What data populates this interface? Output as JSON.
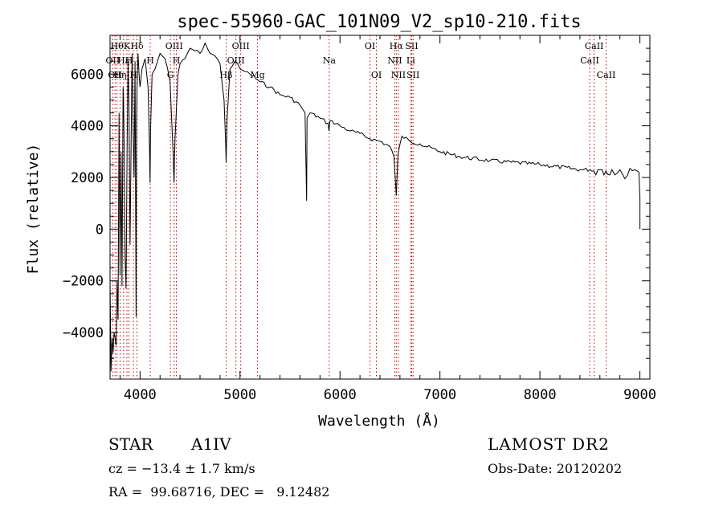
{
  "chart_data": {
    "type": "line",
    "title": "spec-55960-GAC_101N09_V2_sp10-210.fits",
    "xlabel": "Wavelength (Å)",
    "ylabel": "Flux (relative)",
    "xlim": [
      3700,
      9100
    ],
    "ylim": [
      -5800,
      7500
    ],
    "x_ticks": [
      4000,
      5000,
      6000,
      7000,
      8000,
      9000
    ],
    "y_ticks": [
      -4000,
      -2000,
      0,
      2000,
      4000,
      6000
    ],
    "grid": false,
    "line_color": "#000000",
    "line_marker_color": "#c00000",
    "series": [
      {
        "x": [
          3700,
          3710,
          3720,
          3730,
          3740,
          3750,
          3760,
          3770,
          3780,
          3790,
          3800,
          3810,
          3820,
          3830,
          3835,
          3840,
          3850,
          3860,
          3870,
          3880,
          3890,
          3900,
          3910,
          3920,
          3930,
          3940,
          3950,
          3960,
          3965,
          3970,
          3980,
          3990,
          4000,
          4020,
          4050,
          4080,
          4095,
          4100,
          4105,
          4120,
          4150,
          4200,
          4250,
          4300,
          4330,
          4340,
          4350,
          4380,
          4400,
          4450,
          4500,
          4550,
          4600,
          4650,
          4700,
          4750,
          4800,
          4840,
          4855,
          4861,
          4870,
          4900,
          4950,
          5000,
          5050,
          5100,
          5200,
          5300,
          5400,
          5500,
          5600,
          5650,
          5666,
          5670,
          5700,
          5800,
          5880,
          5890,
          5900,
          6000,
          6100,
          6200,
          6300,
          6400,
          6500,
          6540,
          6563,
          6580,
          6620,
          6700,
          6800,
          7000,
          7200,
          7500,
          8000,
          8400,
          8500,
          8540,
          8560,
          8580,
          8620,
          8640,
          8660,
          8700,
          8720,
          8750,
          8800,
          8850,
          8900,
          8950,
          8990,
          9000,
          9000
        ],
        "y": [
          -2000,
          -5500,
          -4200,
          -4800,
          -4000,
          -4200,
          -4500,
          -2000,
          -3500,
          4500,
          -1800,
          3000,
          -2200,
          5500,
          5000,
          3500,
          -1000,
          -2300,
          3000,
          6500,
          4500,
          -600,
          3000,
          6800,
          4000,
          2000,
          6500,
          -3400,
          4000,
          5500,
          6800,
          6000,
          5500,
          6200,
          6600,
          5500,
          3000,
          1800,
          3800,
          6000,
          6200,
          6800,
          6600,
          5700,
          3000,
          1800,
          3500,
          6000,
          6400,
          6600,
          7000,
          6900,
          6800,
          7200,
          6800,
          6700,
          6400,
          5000,
          3500,
          2600,
          4200,
          6200,
          6500,
          6200,
          6100,
          6000,
          5700,
          5500,
          5200,
          5100,
          4800,
          4500,
          1100,
          4300,
          4500,
          4300,
          4100,
          3800,
          4200,
          4000,
          3800,
          3700,
          3500,
          3400,
          3200,
          2800,
          1300,
          2900,
          3600,
          3400,
          3300,
          3000,
          2800,
          2650,
          2500,
          2300,
          2300,
          2250,
          2100,
          2300,
          2300,
          2100,
          2250,
          2100,
          2300,
          2100,
          2300,
          1950,
          2350,
          2300,
          2200,
          1200,
          0
        ]
      }
    ],
    "line_markers": [
      {
        "x": 3727,
        "label": "OII",
        "row": 2
      },
      {
        "x": 3750,
        "label": "OII",
        "row": 3
      },
      {
        "x": 3770,
        "label": "Hθ",
        "row": 1
      },
      {
        "x": 3800,
        "label": "Hη",
        "row": 3
      },
      {
        "x": 3835,
        "label": "Hε",
        "row": 2
      },
      {
        "x": 3869,
        "label": "K",
        "row": 1
      },
      {
        "x": 3889,
        "label": "H",
        "row": 2
      },
      {
        "x": 3934,
        "label": "H",
        "row": 3
      },
      {
        "x": 3969,
        "label": "Hδ",
        "row": 1
      },
      {
        "x": 4102,
        "label": "H",
        "row": 2
      },
      {
        "x": 4304,
        "label": "G",
        "row": 3
      },
      {
        "x": 4341,
        "label": "OIII",
        "row": 1
      },
      {
        "x": 4363,
        "label": "H",
        "row": 2
      },
      {
        "x": 4861,
        "label": "Hβ",
        "row": 3
      },
      {
        "x": 4959,
        "label": "OIII",
        "row": 2
      },
      {
        "x": 5007,
        "label": "OIII",
        "row": 1
      },
      {
        "x": 5175,
        "label": "Mg",
        "row": 3
      },
      {
        "x": 5892,
        "label": "Na",
        "row": 2
      },
      {
        "x": 6300,
        "label": "OI",
        "row": 1
      },
      {
        "x": 6364,
        "label": "OI",
        "row": 3
      },
      {
        "x": 6548,
        "label": "NII",
        "row": 2
      },
      {
        "x": 6563,
        "label": "Hα",
        "row": 1
      },
      {
        "x": 6584,
        "label": "NII",
        "row": 3
      },
      {
        "x": 6708,
        "label": "Li",
        "row": 2
      },
      {
        "x": 6717,
        "label": "SII",
        "row": 1
      },
      {
        "x": 6731,
        "label": "SII",
        "row": 3
      },
      {
        "x": 8498,
        "label": "CaII",
        "row": 2
      },
      {
        "x": 8542,
        "label": "CaII",
        "row": 1
      },
      {
        "x": 8662,
        "label": "CaII",
        "row": 3
      }
    ]
  },
  "info": {
    "object_class": "STAR",
    "subclass": "A1IV",
    "survey": "LAMOST DR2",
    "cz": "cz = −13.4 ± 1.7 km/s",
    "obs_date": "Obs-Date: 20120202",
    "coords": "RA =  99.68716, DEC =   9.12482"
  }
}
